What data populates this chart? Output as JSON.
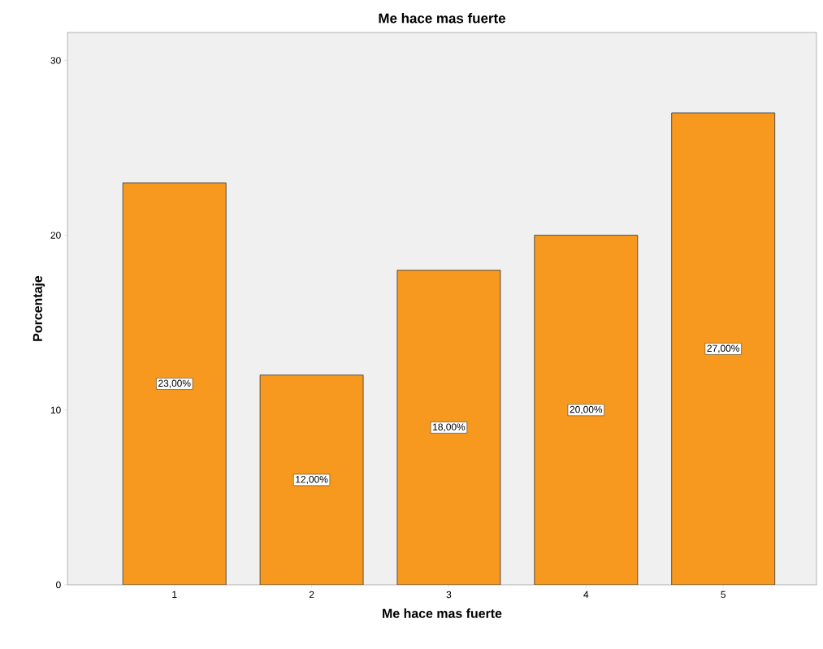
{
  "chart_data": {
    "type": "bar",
    "title": "Me hace mas fuerte",
    "xlabel": "Me hace mas fuerte",
    "ylabel": "Porcentaje",
    "categories": [
      "1",
      "2",
      "3",
      "4",
      "5"
    ],
    "values": [
      23,
      12,
      18,
      20,
      27
    ],
    "value_labels": [
      "23,00%",
      "12,00%",
      "18,00%",
      "20,00%",
      "27,00%"
    ],
    "color": "#f7991f",
    "ylim": [
      0,
      31.6
    ],
    "yticks": [
      0,
      10,
      20,
      30
    ],
    "grid": false
  }
}
